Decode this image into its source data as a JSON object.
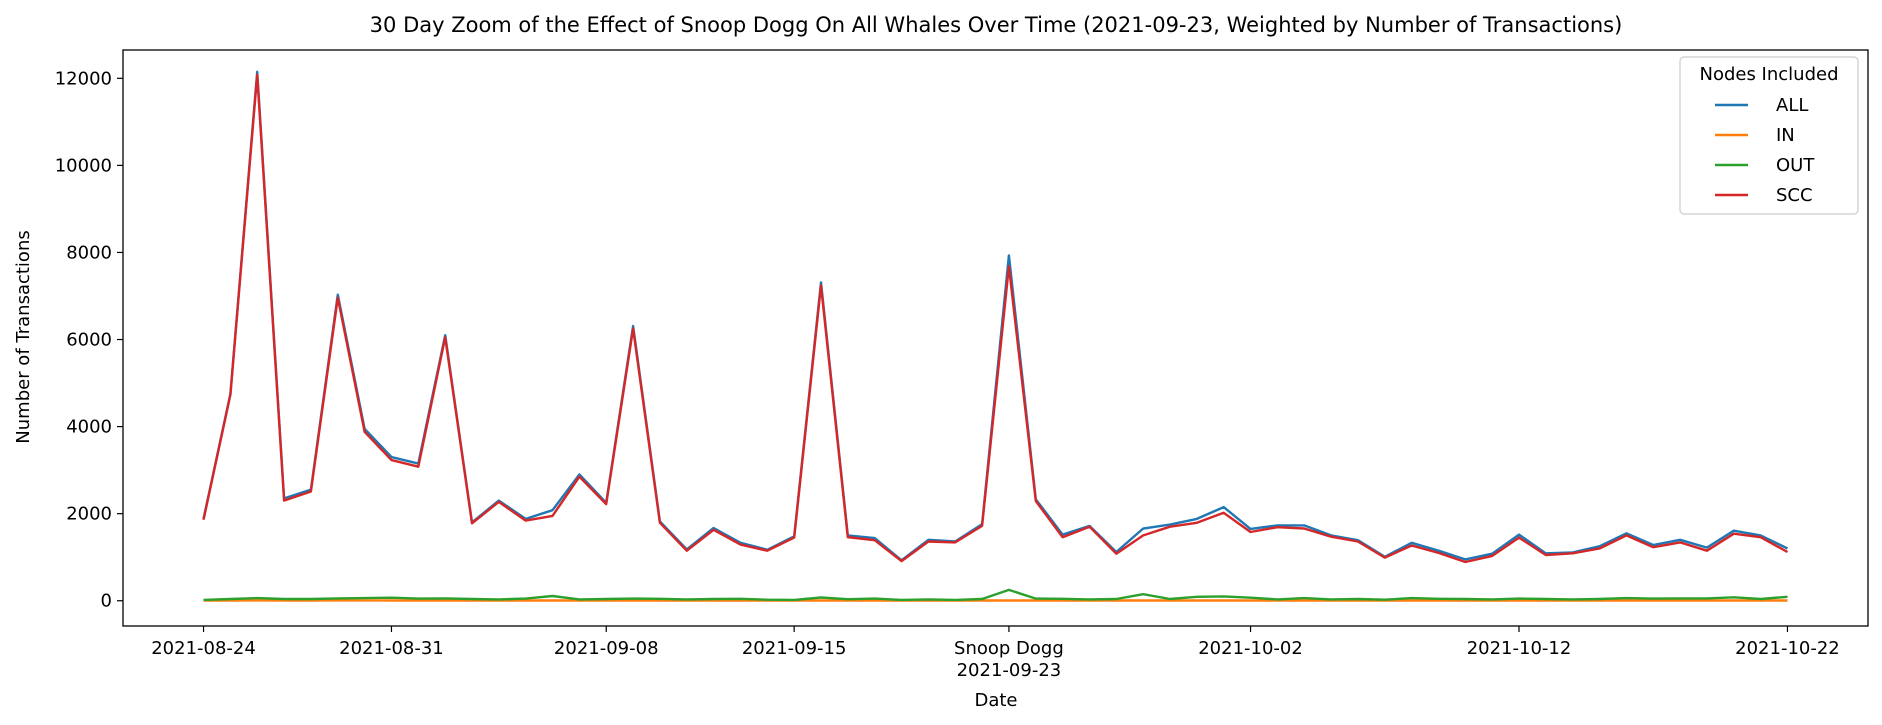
{
  "chart_data": {
    "type": "line",
    "title": "30 Day Zoom of the Effect of Snoop Dogg On All Whales Over Time (2021-09-23, Weighted by Number of Transactions)",
    "xlabel": "Date",
    "ylabel": "Number of Transactions",
    "ylim": [
      -580,
      12650
    ],
    "xlim": [
      "2021-08-21",
      "2021-10-25"
    ],
    "yticks": [
      0,
      2000,
      4000,
      6000,
      8000,
      10000,
      12000
    ],
    "xticks": [
      {
        "date": "2021-08-24",
        "label": "2021-08-24",
        "sublabel": ""
      },
      {
        "date": "2021-08-31",
        "label": "2021-08-31",
        "sublabel": ""
      },
      {
        "date": "2021-09-08",
        "label": "2021-09-08",
        "sublabel": ""
      },
      {
        "date": "2021-09-15",
        "label": "2021-09-15",
        "sublabel": ""
      },
      {
        "date": "2021-09-23",
        "label": "Snoop Dogg",
        "sublabel": "2021-09-23"
      },
      {
        "date": "2021-10-02",
        "label": "2021-10-02",
        "sublabel": ""
      },
      {
        "date": "2021-10-12",
        "label": "2021-10-12",
        "sublabel": ""
      },
      {
        "date": "2021-10-22",
        "label": "2021-10-22",
        "sublabel": ""
      }
    ],
    "grid": false,
    "legend_title": "Nodes Included",
    "legend_position": "top-right",
    "start_date": "2021-08-24",
    "series": [
      {
        "name": "ALL",
        "color": "#1f77b4",
        "values": [
          1880,
          4750,
          12150,
          2350,
          2550,
          7030,
          3950,
          3300,
          3150,
          6100,
          1800,
          2300,
          1880,
          2080,
          2900,
          2250,
          6310,
          1820,
          1180,
          1670,
          1330,
          1170,
          1480,
          7310,
          1500,
          1440,
          930,
          1400,
          1360,
          1760,
          7930,
          2330,
          1520,
          1720,
          1120,
          1660,
          1750,
          1880,
          2150,
          1650,
          1730,
          1730,
          1500,
          1390,
          1010,
          1330,
          1150,
          950,
          1080,
          1520,
          1090,
          1110,
          1250,
          1550,
          1280,
          1400,
          1220,
          1610,
          1500,
          1200
        ]
      },
      {
        "name": "IN",
        "color": "#ff7f0e",
        "values": [
          5,
          6,
          8,
          6,
          5,
          7,
          8,
          6,
          6,
          5,
          5,
          5,
          6,
          5,
          6,
          5,
          6,
          5,
          5,
          5,
          5,
          5,
          5,
          6,
          5,
          5,
          5,
          5,
          5,
          5,
          6,
          5,
          5,
          5,
          5,
          5,
          5,
          5,
          5,
          5,
          5,
          5,
          5,
          5,
          5,
          5,
          5,
          5,
          5,
          5,
          5,
          5,
          5,
          5,
          5,
          5,
          5,
          5,
          5,
          5
        ]
      },
      {
        "name": "OUT",
        "color": "#2ca02c",
        "values": [
          20,
          40,
          60,
          40,
          40,
          55,
          60,
          70,
          50,
          55,
          40,
          30,
          50,
          110,
          30,
          40,
          50,
          45,
          30,
          40,
          45,
          25,
          20,
          75,
          35,
          50,
          20,
          30,
          20,
          40,
          250,
          50,
          45,
          30,
          40,
          150,
          40,
          90,
          100,
          70,
          30,
          60,
          30,
          40,
          25,
          60,
          45,
          40,
          30,
          50,
          40,
          30,
          40,
          60,
          50,
          55,
          55,
          80,
          40,
          90
        ]
      },
      {
        "name": "SCC",
        "color": "#d62728",
        "values": [
          1860,
          4730,
          12080,
          2300,
          2510,
          6960,
          3880,
          3230,
          3080,
          6050,
          1780,
          2270,
          1840,
          1950,
          2850,
          2220,
          6250,
          1790,
          1150,
          1630,
          1290,
          1150,
          1450,
          7240,
          1460,
          1390,
          910,
          1360,
          1340,
          1720,
          7680,
          2290,
          1460,
          1700,
          1080,
          1500,
          1700,
          1790,
          2020,
          1580,
          1690,
          1660,
          1470,
          1360,
          990,
          1270,
          1100,
          890,
          1030,
          1450,
          1050,
          1090,
          1200,
          1500,
          1230,
          1340,
          1150,
          1540,
          1460,
          1120
        ]
      }
    ]
  }
}
